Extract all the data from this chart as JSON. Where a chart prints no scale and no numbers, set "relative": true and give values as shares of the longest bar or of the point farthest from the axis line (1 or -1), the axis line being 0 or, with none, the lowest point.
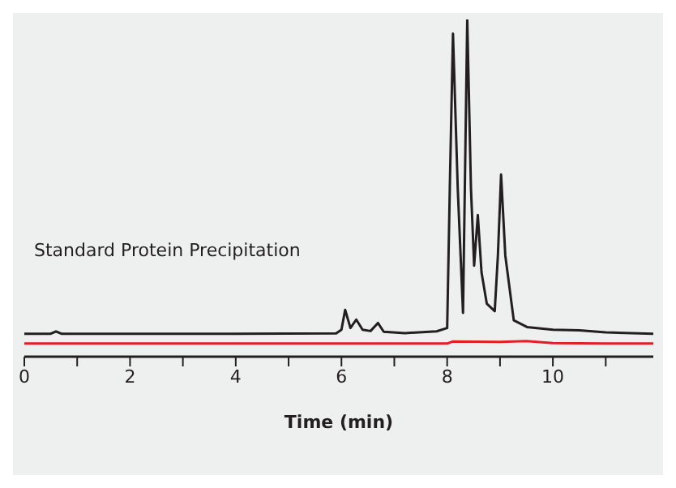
{
  "chart_data": {
    "type": "line",
    "relative": true,
    "xlabel": "Time (min)",
    "xlim": [
      0,
      11.9
    ],
    "xticks": [
      0,
      {
        "value": 1,
        "label": null
      },
      2,
      {
        "value": 3,
        "label": null
      },
      4,
      {
        "value": 5,
        "label": null
      },
      6,
      {
        "value": 7,
        "label": null
      },
      8,
      {
        "value": 9,
        "label": null
      },
      10,
      {
        "value": 11,
        "label": null
      }
    ],
    "legend": "left",
    "tick_labels": "x",
    "marker": "none",
    "line_style": "solid",
    "series": [
      {
        "name": "Standard Protein Precipitation",
        "color": "#231f20",
        "x": [
          0,
          0.5,
          0.6,
          0.7,
          2,
          4,
          5.9,
          6.0,
          6.07,
          6.17,
          6.28,
          6.4,
          6.55,
          6.69,
          6.8,
          7.2,
          7.8,
          8.0,
          8.05,
          8.11,
          8.2,
          8.3,
          8.38,
          8.45,
          8.51,
          8.58,
          8.65,
          8.75,
          8.9,
          8.96,
          9.02,
          9.1,
          9.26,
          9.51,
          10,
          10.5,
          11,
          11.9
        ],
        "values": [
          0.068,
          0.068,
          0.075,
          0.068,
          0.068,
          0.068,
          0.069,
          0.08,
          0.139,
          0.085,
          0.11,
          0.08,
          0.076,
          0.1,
          0.074,
          0.07,
          0.075,
          0.085,
          0.5,
          0.958,
          0.5,
          0.13,
          1.0,
          0.5,
          0.27,
          0.42,
          0.25,
          0.157,
          0.135,
          0.3,
          0.54,
          0.3,
          0.108,
          0.088,
          0.08,
          0.078,
          0.072,
          0.068
        ]
      },
      {
        "color": "#e31e24",
        "x": [
          0,
          2,
          4,
          6,
          8,
          8.1,
          9,
          9.5,
          10,
          11,
          11.9
        ],
        "values": [
          0.039,
          0.039,
          0.039,
          0.039,
          0.039,
          0.045,
          0.044,
          0.046,
          0.04,
          0.039,
          0.039
        ]
      }
    ]
  }
}
